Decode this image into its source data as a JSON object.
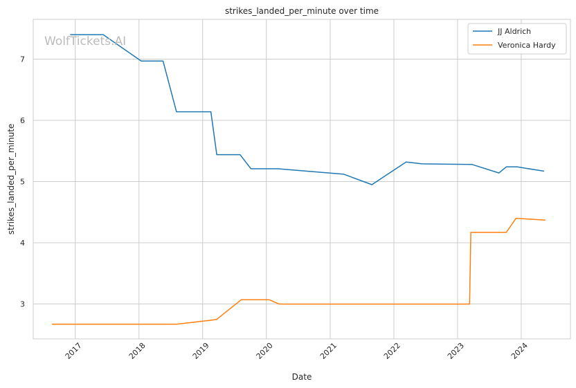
{
  "chart_data": {
    "type": "line",
    "title": "strikes_landed_per_minute over time",
    "xlabel": "Date",
    "ylabel": "strikes_landed_per_minute",
    "watermark": "WolfTickets.AI",
    "x_ticks": [
      "2017",
      "2018",
      "2019",
      "2020",
      "2021",
      "2022",
      "2023",
      "2024"
    ],
    "y_ticks": [
      "3",
      "4",
      "5",
      "6",
      "7"
    ],
    "xlim": [
      "2016-05-05",
      "2024-10-09"
    ],
    "ylim": [
      2.43,
      7.65
    ],
    "grid": true,
    "legend_position": "top-right",
    "series": [
      {
        "name": "JJ Aldrich",
        "color": "#1f77b4",
        "points": [
          [
            "2016-12-03",
            7.4
          ],
          [
            "2017-06-10",
            7.4
          ],
          [
            "2018-01-14",
            6.97
          ],
          [
            "2018-05-19",
            6.97
          ],
          [
            "2018-08-04",
            6.14
          ],
          [
            "2019-02-17",
            6.14
          ],
          [
            "2019-03-23",
            5.44
          ],
          [
            "2019-08-03",
            5.44
          ],
          [
            "2019-10-05",
            5.21
          ],
          [
            "2020-03-07",
            5.21
          ],
          [
            "2021-03-20",
            5.12
          ],
          [
            "2021-08-28",
            4.95
          ],
          [
            "2022-03-12",
            5.32
          ],
          [
            "2022-06-11",
            5.29
          ],
          [
            "2023-03-25",
            5.28
          ],
          [
            "2023-08-26",
            5.14
          ],
          [
            "2023-10-07",
            5.24
          ],
          [
            "2023-12-09",
            5.24
          ],
          [
            "2024-05-11",
            5.17
          ]
        ]
      },
      {
        "name": "Veronica Hardy",
        "color": "#ff7f0e",
        "points": [
          [
            "2016-08-20",
            2.67
          ],
          [
            "2018-08-04",
            2.67
          ],
          [
            "2019-03-02",
            2.74
          ],
          [
            "2019-03-23",
            2.75
          ],
          [
            "2019-08-10",
            3.07
          ],
          [
            "2020-01-18",
            3.07
          ],
          [
            "2020-03-14",
            3.0
          ],
          [
            "2023-03-11",
            3.0
          ],
          [
            "2023-03-18",
            4.17
          ],
          [
            "2023-10-07",
            4.17
          ],
          [
            "2023-12-02",
            4.4
          ],
          [
            "2024-05-18",
            4.37
          ]
        ]
      }
    ]
  }
}
